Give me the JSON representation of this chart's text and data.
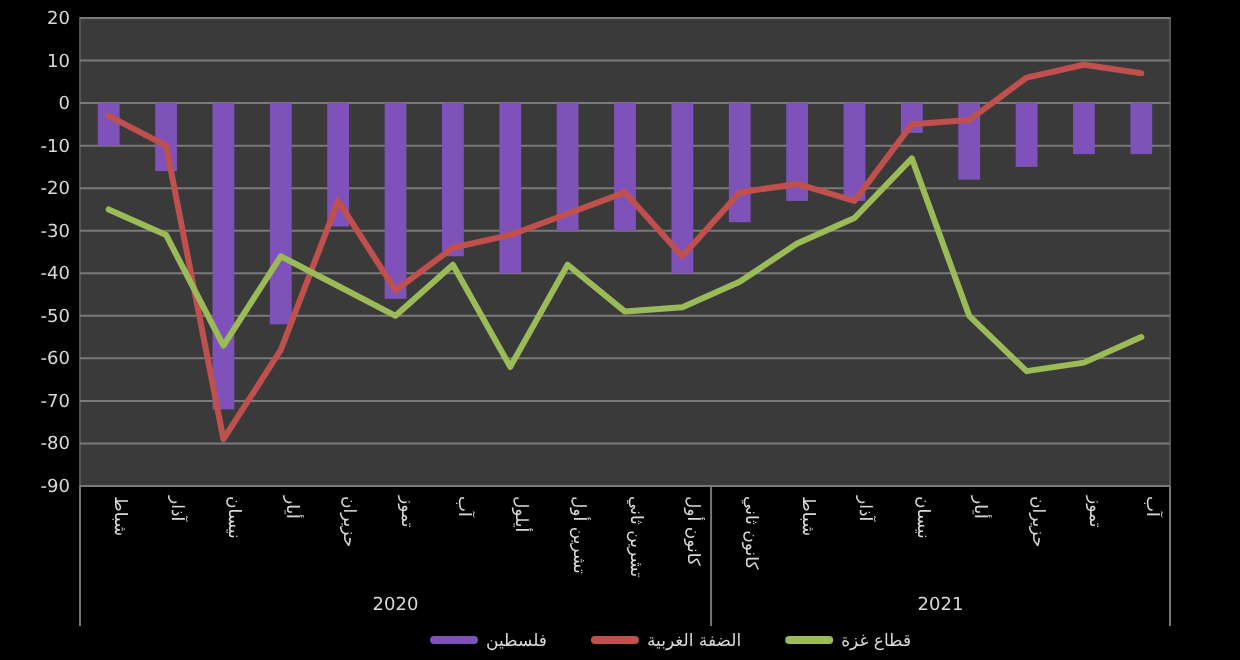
{
  "chart_data": {
    "type": "bar",
    "categories": [
      "شباط",
      "آذار",
      "نيسان",
      "أيار",
      "حزيران",
      "تموز",
      "آب",
      "أيلول",
      "تشرين أول",
      "تشرين ثاني",
      "كانون أول",
      "كانون ثاني",
      "شباط",
      "آذار",
      "نيسان",
      "أيار",
      "حزيران",
      "تموز",
      "آب"
    ],
    "series": [
      {
        "name": "فلسطين",
        "color": "#7e52b8",
        "values": [
          -10,
          -16,
          -72,
          -52,
          -29,
          -46,
          -36,
          -40,
          -30,
          -30,
          -40,
          -28,
          -23,
          -23,
          -7,
          -18,
          -15,
          -12,
          -12
        ]
      },
      {
        "name": "الضفة الغربية",
        "type": "line",
        "color": "#c0504d",
        "values": [
          -3,
          -10,
          -79,
          -58,
          -23,
          -44,
          -34,
          -31,
          -26,
          -21,
          -36,
          -21,
          -19,
          -23,
          -5,
          -4,
          6,
          9,
          7
        ]
      },
      {
        "name": "قطاع غزة",
        "type": "line",
        "color": "#9bbb59",
        "values": [
          -25,
          -31,
          -57,
          -36,
          -43,
          -50,
          -38,
          -62,
          -38,
          -49,
          -48,
          -42,
          -33,
          -27,
          -13,
          -50,
          -63,
          -61,
          -55
        ]
      }
    ],
    "annotations": [
      "2020",
      "2021"
    ],
    "ylim": [
      -90,
      20
    ],
    "yticks": [
      -90,
      -80,
      -70,
      -60,
      -50,
      -40,
      -30,
      -20,
      -10,
      0,
      10,
      20
    ],
    "grid": "y",
    "legend": "bottom"
  }
}
